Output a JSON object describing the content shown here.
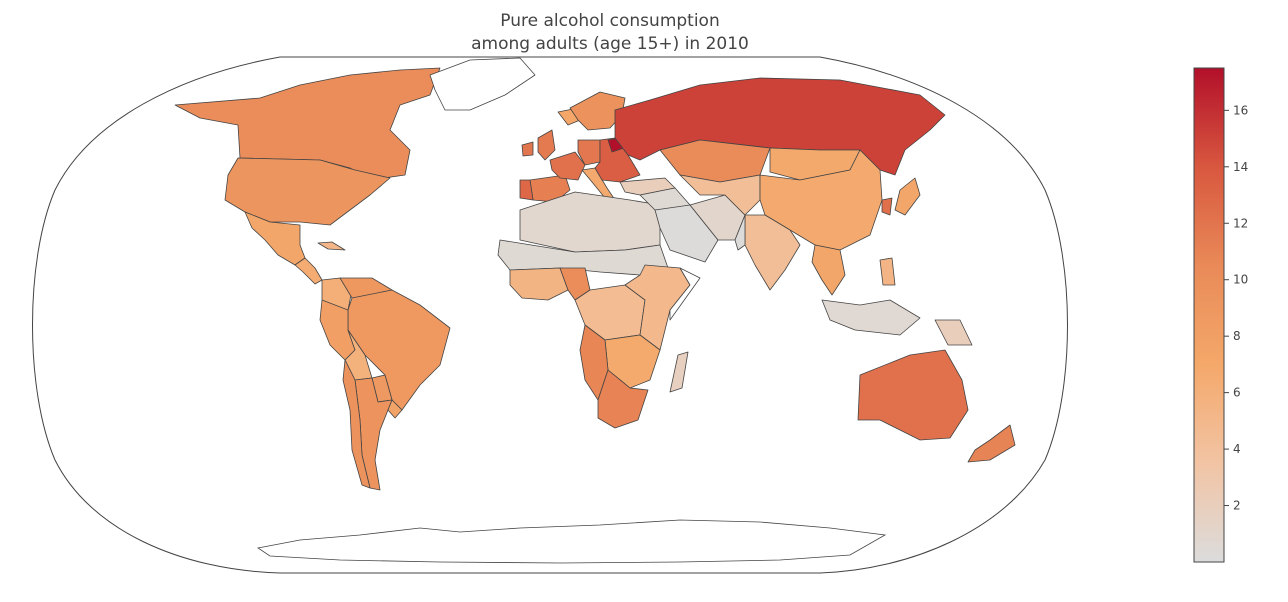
{
  "title_line1": "Pure alcohol consumption",
  "title_line2": "among adults (age 15+) in 2010",
  "colors": {
    "ocean": "#ffffff",
    "nodata": "#ffffff",
    "border": "#444444",
    "colorscale": [
      "#dcdcdc",
      "#f2c4a4",
      "#f4a86a",
      "#e98a58",
      "#d8573f",
      "#b2102a"
    ]
  },
  "chart_data": {
    "type": "choropleth",
    "projection": "robinson",
    "variable": "liters of pure alcohol per capita",
    "colorbar": {
      "min": 0,
      "max": 17.5,
      "ticks": [
        2,
        4,
        6,
        8,
        10,
        12,
        14,
        16
      ]
    },
    "regions": [
      {
        "name": "Canada",
        "value": 10.2
      },
      {
        "name": "United States",
        "value": 9.2
      },
      {
        "name": "Mexico",
        "value": 7.2
      },
      {
        "name": "Central America",
        "value": 6.5
      },
      {
        "name": "Cuba",
        "value": 5.2
      },
      {
        "name": "Greenland",
        "value": null
      },
      {
        "name": "Colombia",
        "value": 6.2
      },
      {
        "name": "Venezuela",
        "value": 8.9
      },
      {
        "name": "Brazil",
        "value": 8.7
      },
      {
        "name": "Peru",
        "value": 8.1
      },
      {
        "name": "Bolivia",
        "value": 5.9
      },
      {
        "name": "Paraguay",
        "value": 8.8
      },
      {
        "name": "Argentina",
        "value": 9.3
      },
      {
        "name": "Chile",
        "value": 9.6
      },
      {
        "name": "Uruguay",
        "value": 7.6
      },
      {
        "name": "Iceland",
        "value": 7.1
      },
      {
        "name": "United Kingdom",
        "value": 11.6
      },
      {
        "name": "Ireland",
        "value": 11.9
      },
      {
        "name": "Spain",
        "value": 11.2
      },
      {
        "name": "Portugal",
        "value": 12.9
      },
      {
        "name": "France",
        "value": 12.2
      },
      {
        "name": "Germany",
        "value": 11.8
      },
      {
        "name": "Scandinavia",
        "value": 9.5
      },
      {
        "name": "Italy",
        "value": 6.7
      },
      {
        "name": "Eastern Europe",
        "value": 13.5
      },
      {
        "name": "Belarus",
        "value": 17.5
      },
      {
        "name": "Russia",
        "value": 15.1
      },
      {
        "name": "Turkey",
        "value": 2.0
      },
      {
        "name": "North Africa",
        "value": 0.8
      },
      {
        "name": "Sahel",
        "value": 0.5
      },
      {
        "name": "West Africa",
        "value": 5.5
      },
      {
        "name": "Nigeria",
        "value": 10.1
      },
      {
        "name": "Central Africa",
        "value": 4.5
      },
      {
        "name": "East Africa",
        "value": 5.0
      },
      {
        "name": "Somalia",
        "value": null
      },
      {
        "name": "Southern Africa",
        "value": 6.8
      },
      {
        "name": "Namibia",
        "value": 10.8
      },
      {
        "name": "South Africa",
        "value": 11.0
      },
      {
        "name": "Madagascar",
        "value": 1.8
      },
      {
        "name": "Middle East",
        "value": 0.5
      },
      {
        "name": "Saudi Arabia",
        "value": 0.2
      },
      {
        "name": "Iran",
        "value": 1.0
      },
      {
        "name": "Kazakhstan",
        "value": 10.3
      },
      {
        "name": "Central Asia",
        "value": 4.3
      },
      {
        "name": "Mongolia",
        "value": 6.9
      },
      {
        "name": "China",
        "value": 6.7
      },
      {
        "name": "India",
        "value": 4.3
      },
      {
        "name": "Pakistan",
        "value": 0.1
      },
      {
        "name": "Southeast Asia",
        "value": 7.2
      },
      {
        "name": "Japan",
        "value": 7.2
      },
      {
        "name": "Korea",
        "value": 12.3
      },
      {
        "name": "Philippines",
        "value": 5.4
      },
      {
        "name": "Indonesia",
        "value": 0.6
      },
      {
        "name": "Papua New Guinea",
        "value": 2.0
      },
      {
        "name": "Australia",
        "value": 12.2
      },
      {
        "name": "New Zealand",
        "value": 10.9
      }
    ]
  }
}
